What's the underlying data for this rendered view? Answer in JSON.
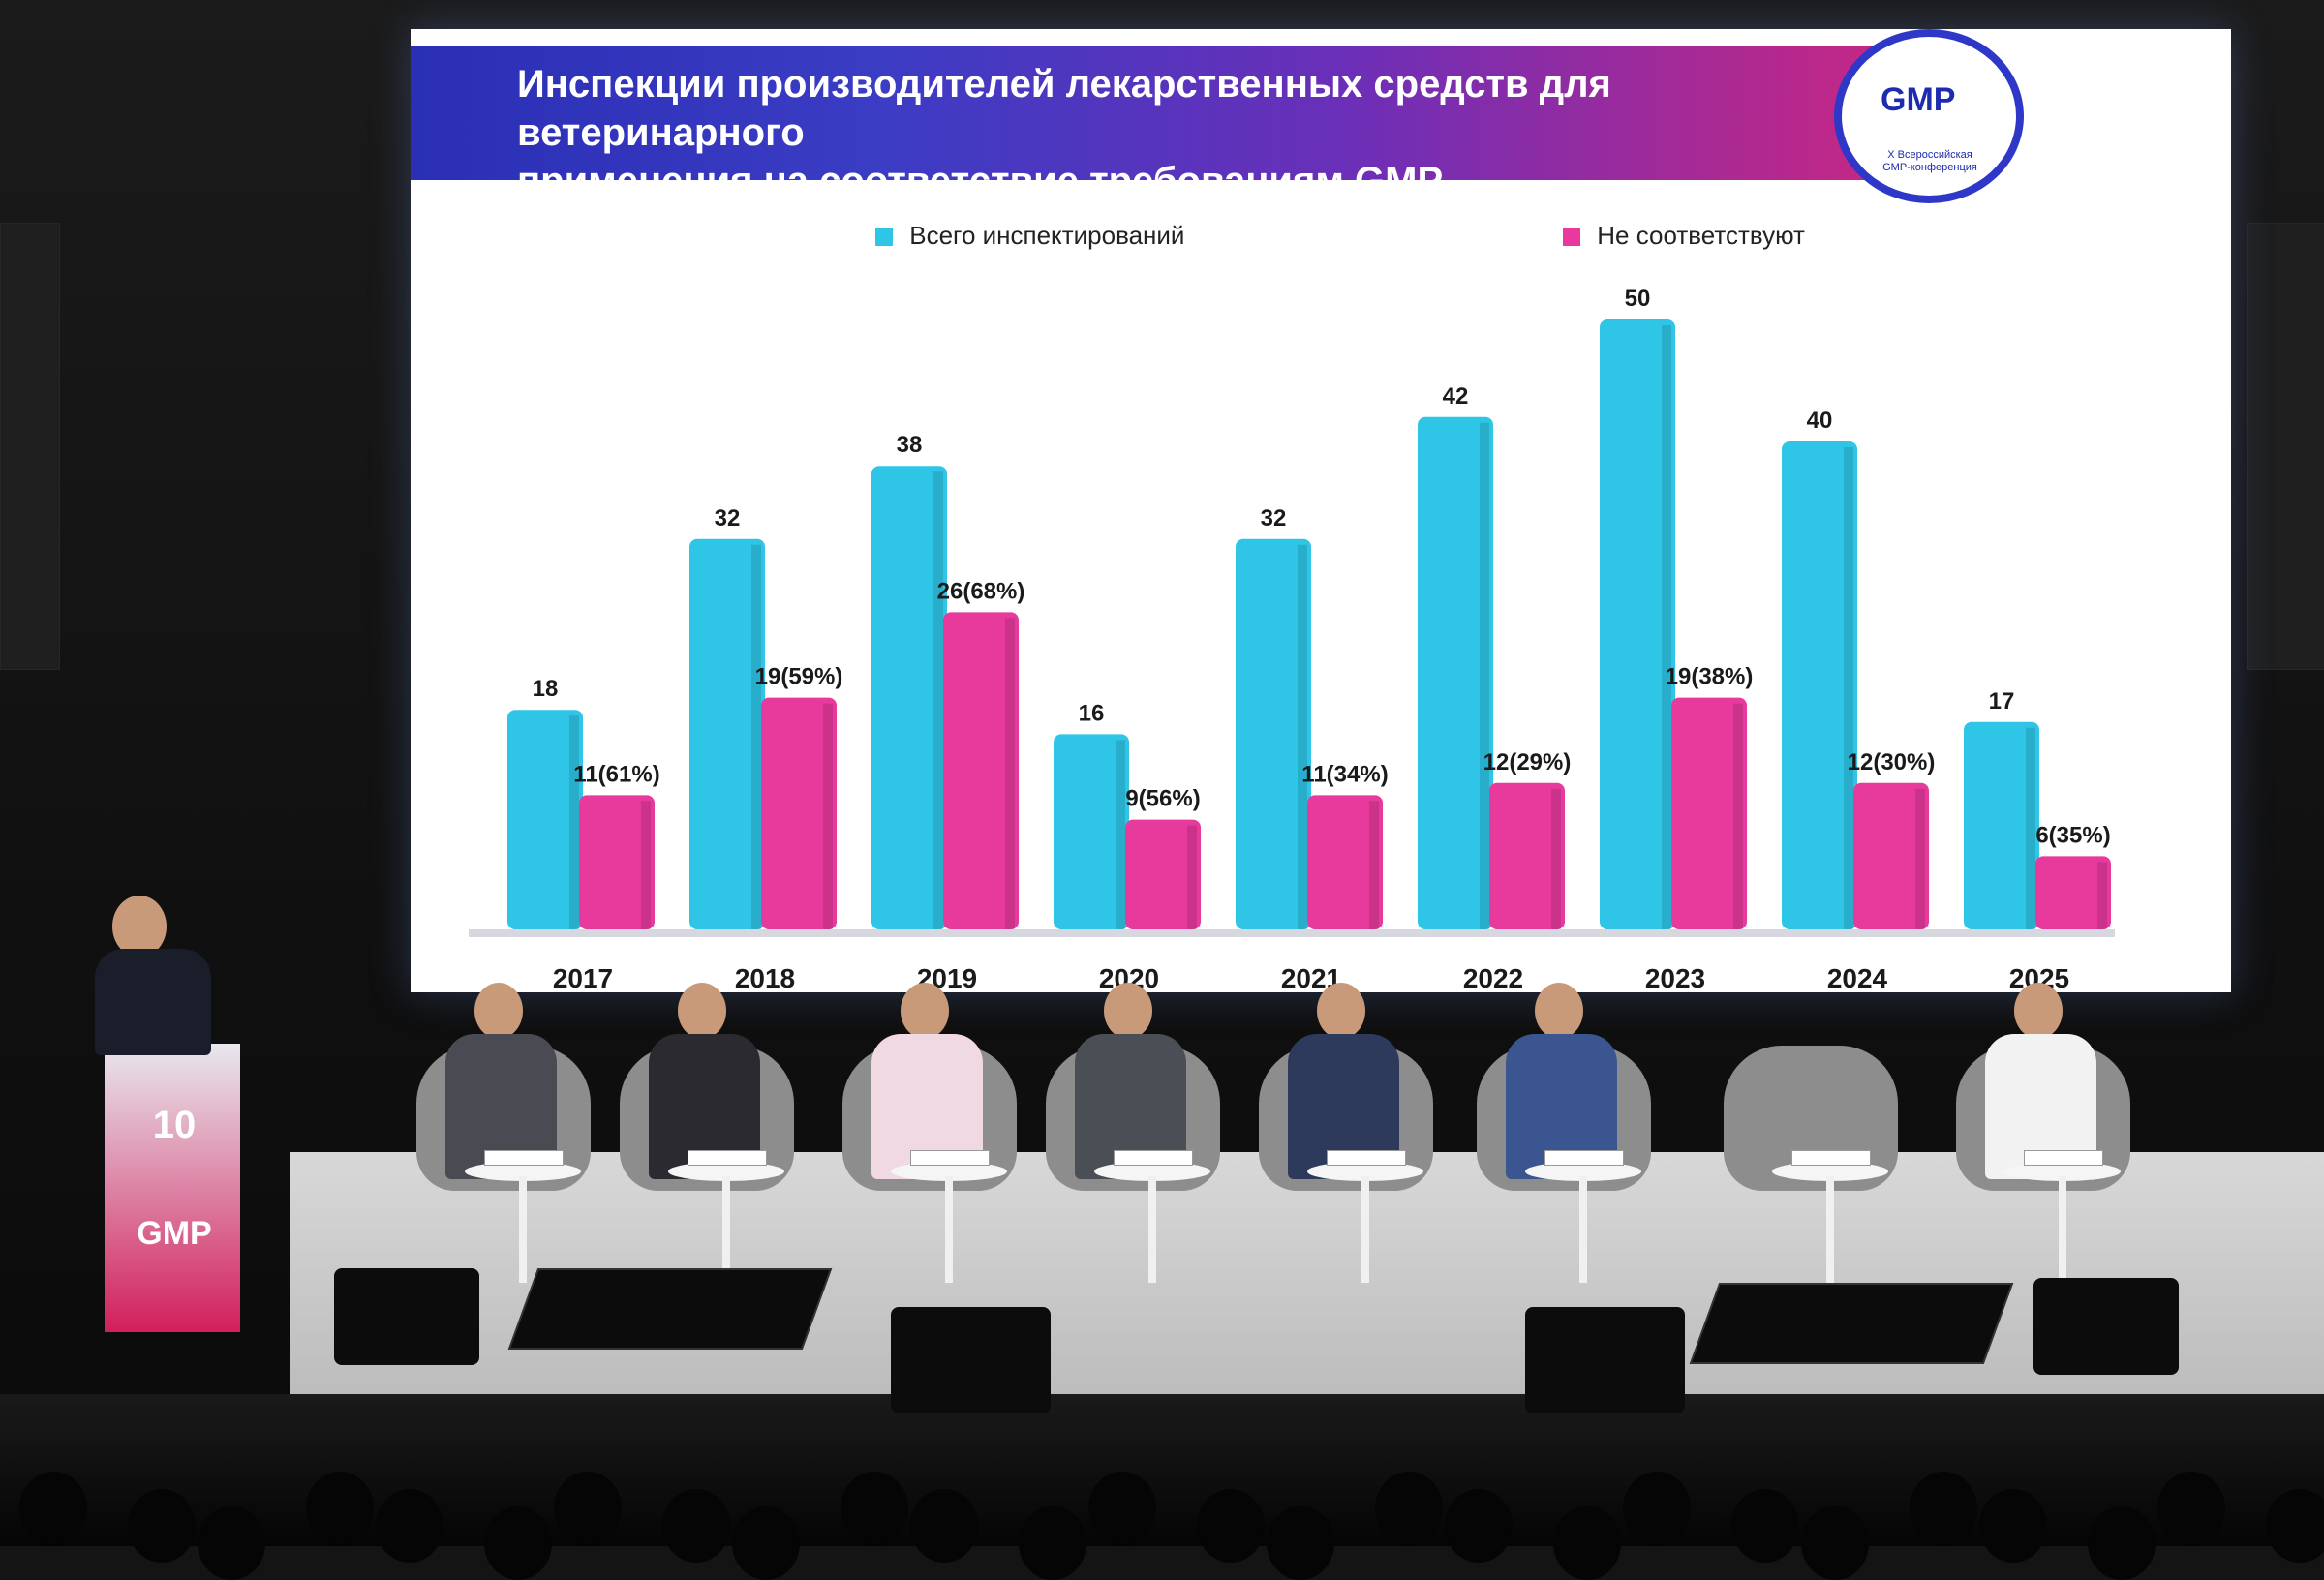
{
  "slide": {
    "title": "Инспекции производителей лекарственных средств для ветеринарного\nприменения на соответствие требованиям GMP",
    "logo": {
      "main": "GMP",
      "sub": "X Всероссийская\nGMP-конференция"
    }
  },
  "podium_logo": {
    "number": "10",
    "brand": "GMP"
  },
  "chart_data": {
    "type": "bar",
    "title": "Инспекции производителей лекарственных средств для ветеринарного применения на соответствие требованиям GMP",
    "categories": [
      "2017",
      "2018",
      "2019",
      "2020",
      "2021",
      "2022",
      "2023",
      "2024",
      "2025"
    ],
    "series": [
      {
        "name": "Всего инспектирований",
        "values": [
          18,
          32,
          38,
          16,
          32,
          42,
          50,
          40,
          17
        ],
        "labels": [
          "18",
          "32",
          "38",
          "16",
          "32",
          "42",
          "50",
          "40",
          "17"
        ]
      },
      {
        "name": "Не соответствуют",
        "values": [
          11,
          19,
          26,
          9,
          11,
          12,
          19,
          12,
          6
        ],
        "labels": [
          "11(61%)",
          "19(59%)",
          "26(68%)",
          "9(56%)",
          "11(34%)",
          "12(29%)",
          "19(38%)",
          "12(30%)",
          "6(35%)"
        ]
      }
    ],
    "ylim": [
      0,
      50
    ],
    "legend": "top",
    "grid": false,
    "colors": [
      "#2ec5e6",
      "#e8399d"
    ]
  }
}
